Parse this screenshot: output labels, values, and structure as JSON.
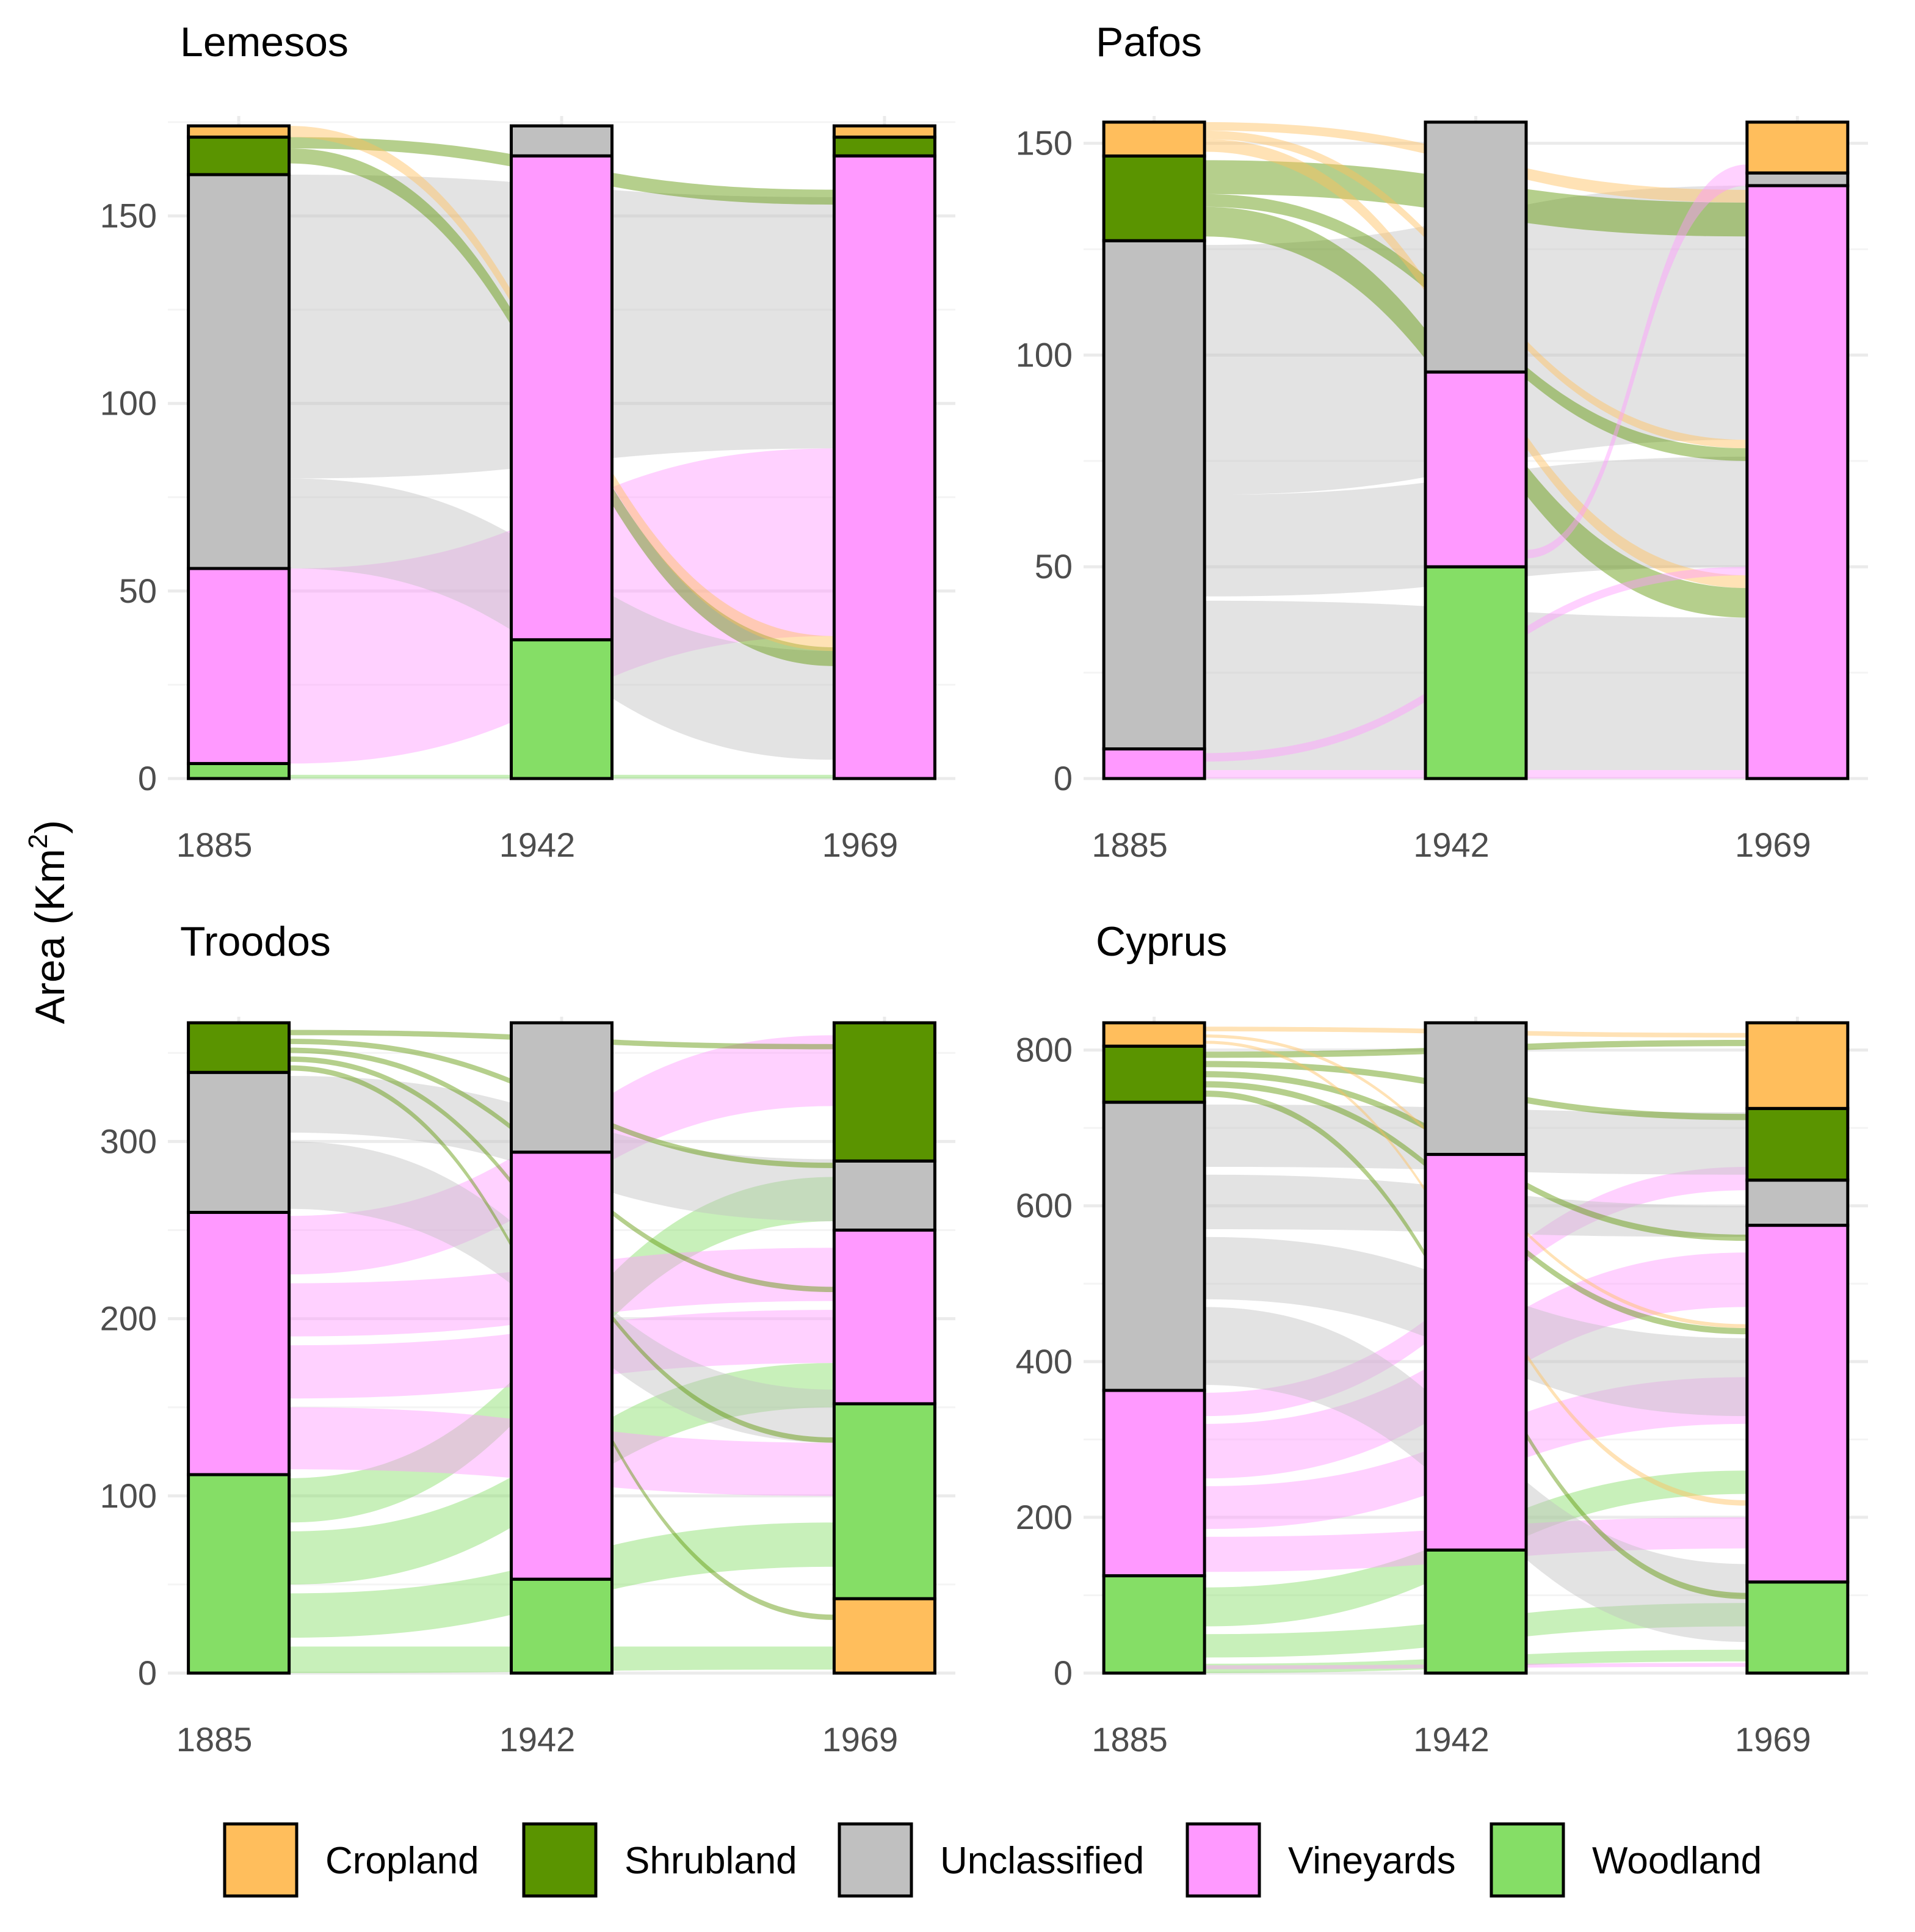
{
  "figure": {
    "ylabel_main": "Area (Km",
    "ylabel_sup": "2",
    "ylabel_close": ")"
  },
  "legend": {
    "entries": [
      {
        "name": "Cropland",
        "color": "#FFBE5C"
      },
      {
        "name": "Shrubland",
        "color": "#5A9400"
      },
      {
        "name": "Unclassified",
        "color": "#C0C0C0"
      },
      {
        "name": "Vineyards",
        "color": "#FF99FF"
      },
      {
        "name": "Woodland",
        "color": "#85DE66"
      }
    ]
  },
  "chart_data": [
    {
      "type": "alluvial",
      "title": "Lemesos",
      "years": [
        "1885",
        "1942",
        "1969"
      ],
      "ylim": [
        0,
        175
      ],
      "yticks": [
        0,
        50,
        100,
        150
      ],
      "stacks": {
        "1885": [
          {
            "category": "Woodland",
            "value": 4
          },
          {
            "category": "Vineyards",
            "value": 52
          },
          {
            "category": "Unclassified",
            "value": 105
          },
          {
            "category": "Shrubland",
            "value": 10
          },
          {
            "category": "Cropland",
            "value": 3
          }
        ],
        "1942": [
          {
            "category": "Woodland",
            "value": 37
          },
          {
            "category": "Vineyards",
            "value": 129
          },
          {
            "category": "Unclassified",
            "value": 8
          }
        ],
        "1969": [
          {
            "category": "Vineyards",
            "value": 166
          },
          {
            "category": "Shrubland",
            "value": 5
          },
          {
            "category": "Cropland",
            "value": 3
          }
        ]
      },
      "flows": [
        {
          "from": [
            1885,
            1969
          ],
          "from_y": [
            0,
            1
          ],
          "to_y": [
            0,
            1
          ],
          "category": "Woodland"
        },
        {
          "from": [
            1885,
            1969
          ],
          "from_y": [
            4,
            56
          ],
          "to_y": [
            38,
            88
          ],
          "category": "Vineyards"
        },
        {
          "from": [
            1885,
            1969
          ],
          "from_y": [
            56,
            80
          ],
          "to_y": [
            5,
            34
          ],
          "category": "Unclassified"
        },
        {
          "from": [
            1885,
            1969
          ],
          "from_y": [
            80,
            161
          ],
          "to_y": [
            88,
            155
          ],
          "category": "Unclassified"
        },
        {
          "from": [
            1885,
            1969
          ],
          "from_y": [
            164,
            168
          ],
          "to_y": [
            30,
            35
          ],
          "category": "Shrubland"
        },
        {
          "from": [
            1885,
            1969
          ],
          "from_y": [
            168,
            171
          ],
          "to_y": [
            153,
            157
          ],
          "category": "Shrubland"
        },
        {
          "from": [
            1885,
            1969
          ],
          "from_y": [
            171,
            174
          ],
          "to_y": [
            34,
            38
          ],
          "category": "Cropland"
        }
      ]
    },
    {
      "type": "alluvial",
      "title": "Pafos",
      "years": [
        "1885",
        "1942",
        "1969"
      ],
      "ylim": [
        0,
        155
      ],
      "yticks": [
        0,
        50,
        100,
        150
      ],
      "stacks": {
        "1885": [
          {
            "category": "Vineyards",
            "value": 7
          },
          {
            "category": "Unclassified",
            "value": 120
          },
          {
            "category": "Shrubland",
            "value": 20
          },
          {
            "category": "Cropland",
            "value": 8
          }
        ],
        "1942": [
          {
            "category": "Woodland",
            "value": 50
          },
          {
            "category": "Vineyards",
            "value": 46
          },
          {
            "category": "Unclassified",
            "value": 59
          }
        ],
        "1969": [
          {
            "category": "Vineyards",
            "value": 140
          },
          {
            "category": "Unclassified",
            "value": 3
          },
          {
            "category": "Cropland",
            "value": 12
          }
        ]
      },
      "flows": [
        {
          "from": [
            1885,
            1969
          ],
          "from_y": [
            0,
            2
          ],
          "to_y": [
            0,
            2
          ],
          "category": "Vineyards"
        },
        {
          "from": [
            1885,
            1969
          ],
          "from_y": [
            2,
            42
          ],
          "to_y": [
            2,
            38
          ],
          "category": "Unclassified"
        },
        {
          "from": [
            1885,
            1969
          ],
          "from_y": [
            43,
            67
          ],
          "to_y": [
            50,
            76
          ],
          "category": "Unclassified"
        },
        {
          "from": [
            1885,
            1969
          ],
          "from_y": [
            67,
            126
          ],
          "to_y": [
            80,
            140
          ],
          "category": "Unclassified"
        },
        {
          "from": [
            1885,
            1969
          ],
          "from_y": [
            128,
            135
          ],
          "to_y": [
            38,
            45
          ],
          "category": "Shrubland"
        },
        {
          "from": [
            1885,
            1969
          ],
          "from_y": [
            135,
            138
          ],
          "to_y": [
            75,
            78
          ],
          "category": "Shrubland"
        },
        {
          "from": [
            1885,
            1969
          ],
          "from_y": [
            138,
            146
          ],
          "to_y": [
            128,
            136
          ],
          "category": "Shrubland"
        },
        {
          "from": [
            1885,
            1969
          ],
          "from_y": [
            148,
            151
          ],
          "to_y": [
            45,
            48
          ],
          "category": "Cropland"
        },
        {
          "from": [
            1885,
            1969
          ],
          "from_y": [
            151,
            153
          ],
          "to_y": [
            78,
            80
          ],
          "category": "Cropland"
        },
        {
          "from": [
            1885,
            1969
          ],
          "from_y": [
            153,
            155
          ],
          "to_y": [
            136,
            139
          ],
          "category": "Cropland"
        },
        {
          "from": [
            1885,
            1969
          ],
          "from_y": [
            4,
            6
          ],
          "to_y": [
            48,
            50
          ],
          "category": "Vineyards"
        },
        {
          "from": [
            1942,
            1969
          ],
          "from_y": [
            52,
            54
          ],
          "to_y": [
            140,
            145
          ],
          "category": "Vineyards"
        }
      ]
    },
    {
      "type": "alluvial",
      "title": "Troodos",
      "years": [
        "1885",
        "1942",
        "1969"
      ],
      "ylim": [
        0,
        367
      ],
      "yticks": [
        0,
        100,
        200,
        300
      ],
      "stacks": {
        "1885": [
          {
            "category": "Woodland",
            "value": 112
          },
          {
            "category": "Vineyards",
            "value": 148
          },
          {
            "category": "Unclassified",
            "value": 79
          },
          {
            "category": "Shrubland",
            "value": 28
          }
        ],
        "1942": [
          {
            "category": "Woodland",
            "value": 53
          },
          {
            "category": "Vineyards",
            "value": 241
          },
          {
            "category": "Unclassified",
            "value": 73
          }
        ],
        "1969": [
          {
            "category": "Cropland",
            "value": 42
          },
          {
            "category": "Woodland",
            "value": 110
          },
          {
            "category": "Vineyards",
            "value": 98
          },
          {
            "category": "Unclassified",
            "value": 39
          },
          {
            "category": "Shrubland",
            "value": 78
          }
        ]
      },
      "flows": [
        {
          "from": [
            1885,
            1969
          ],
          "from_y": [
            0,
            15
          ],
          "to_y": [
            2,
            15
          ],
          "category": "Woodland"
        },
        {
          "from": [
            1885,
            1969
          ],
          "from_y": [
            20,
            45
          ],
          "to_y": [
            60,
            85
          ],
          "category": "Woodland"
        },
        {
          "from": [
            1885,
            1969
          ],
          "from_y": [
            50,
            80
          ],
          "to_y": [
            150,
            175
          ],
          "category": "Woodland"
        },
        {
          "from": [
            1885,
            1969
          ],
          "from_y": [
            85,
            110
          ],
          "to_y": [
            255,
            280
          ],
          "category": "Woodland"
        },
        {
          "from": [
            1885,
            1969
          ],
          "from_y": [
            115,
            150
          ],
          "to_y": [
            100,
            130
          ],
          "category": "Vineyards"
        },
        {
          "from": [
            1885,
            1969
          ],
          "from_y": [
            155,
            185
          ],
          "to_y": [
            175,
            205
          ],
          "category": "Vineyards"
        },
        {
          "from": [
            1885,
            1969
          ],
          "from_y": [
            190,
            220
          ],
          "to_y": [
            210,
            240
          ],
          "category": "Vineyards"
        },
        {
          "from": [
            1885,
            1969
          ],
          "from_y": [
            225,
            258
          ],
          "to_y": [
            320,
            360
          ],
          "category": "Vineyards"
        },
        {
          "from": [
            1885,
            1969
          ],
          "from_y": [
            262,
            300
          ],
          "to_y": [
            130,
            160
          ],
          "category": "Unclassified"
        },
        {
          "from": [
            1885,
            1969
          ],
          "from_y": [
            305,
            337
          ],
          "to_y": [
            255,
            290
          ],
          "category": "Unclassified"
        },
        {
          "from": [
            1885,
            1969
          ],
          "from_y": [
            340,
            343
          ],
          "to_y": [
            30,
            33
          ],
          "category": "Shrubland"
        },
        {
          "from": [
            1885,
            1969
          ],
          "from_y": [
            345,
            348
          ],
          "to_y": [
            130,
            133
          ],
          "category": "Shrubland"
        },
        {
          "from": [
            1885,
            1969
          ],
          "from_y": [
            350,
            353
          ],
          "to_y": [
            215,
            218
          ],
          "category": "Shrubland"
        },
        {
          "from": [
            1885,
            1969
          ],
          "from_y": [
            355,
            358
          ],
          "to_y": [
            285,
            288
          ],
          "category": "Shrubland"
        },
        {
          "from": [
            1885,
            1969
          ],
          "from_y": [
            360,
            363
          ],
          "to_y": [
            352,
            355
          ],
          "category": "Shrubland"
        }
      ]
    },
    {
      "type": "alluvial",
      "title": "Cyprus",
      "years": [
        "1885",
        "1942",
        "1969"
      ],
      "ylim": [
        0,
        835
      ],
      "yticks": [
        0,
        200,
        400,
        600,
        800
      ],
      "stacks": {
        "1885": [
          {
            "category": "Woodland",
            "value": 125
          },
          {
            "category": "Vineyards",
            "value": 238
          },
          {
            "category": "Unclassified",
            "value": 370
          },
          {
            "category": "Shrubland",
            "value": 72
          },
          {
            "category": "Cropland",
            "value": 30
          }
        ],
        "1942": [
          {
            "category": "Woodland",
            "value": 158
          },
          {
            "category": "Vineyards",
            "value": 508
          },
          {
            "category": "Unclassified",
            "value": 169
          }
        ],
        "1969": [
          {
            "category": "Woodland",
            "value": 117
          },
          {
            "category": "Vineyards",
            "value": 458
          },
          {
            "category": "Unclassified",
            "value": 58
          },
          {
            "category": "Shrubland",
            "value": 92
          },
          {
            "category": "Cropland",
            "value": 110
          }
        ]
      },
      "flows": [
        {
          "from": [
            1885,
            1969
          ],
          "from_y": [
            0,
            12
          ],
          "to_y": [
            15,
            30
          ],
          "category": "Woodland"
        },
        {
          "from": [
            1885,
            1969
          ],
          "from_y": [
            20,
            50
          ],
          "to_y": [
            60,
            90
          ],
          "category": "Woodland"
        },
        {
          "from": [
            1885,
            1969
          ],
          "from_y": [
            60,
            110
          ],
          "to_y": [
            230,
            260
          ],
          "category": "Woodland"
        },
        {
          "from": [
            1885,
            1969
          ],
          "from_y": [
            130,
            175
          ],
          "to_y": [
            160,
            200
          ],
          "category": "Vineyards"
        },
        {
          "from": [
            1885,
            1969
          ],
          "from_y": [
            185,
            240
          ],
          "to_y": [
            320,
            380
          ],
          "category": "Vineyards"
        },
        {
          "from": [
            1885,
            1969
          ],
          "from_y": [
            250,
            320
          ],
          "to_y": [
            470,
            540
          ],
          "category": "Vineyards"
        },
        {
          "from": [
            1885,
            1969
          ],
          "from_y": [
            330,
            360
          ],
          "to_y": [
            620,
            650
          ],
          "category": "Vineyards"
        },
        {
          "from": [
            1885,
            1969
          ],
          "from_y": [
            370,
            470
          ],
          "to_y": [
            40,
            140
          ],
          "category": "Unclassified"
        },
        {
          "from": [
            1885,
            1969
          ],
          "from_y": [
            480,
            560
          ],
          "to_y": [
            330,
            430
          ],
          "category": "Unclassified"
        },
        {
          "from": [
            1885,
            1969
          ],
          "from_y": [
            570,
            640
          ],
          "to_y": [
            560,
            600
          ],
          "category": "Unclassified"
        },
        {
          "from": [
            1885,
            1969
          ],
          "from_y": [
            650,
            730
          ],
          "to_y": [
            640,
            720
          ],
          "category": "Unclassified"
        },
        {
          "from": [
            1885,
            1969
          ],
          "from_y": [
            740,
            748
          ],
          "to_y": [
            95,
            103
          ],
          "category": "Shrubland"
        },
        {
          "from": [
            1885,
            1969
          ],
          "from_y": [
            752,
            760
          ],
          "to_y": [
            435,
            443
          ],
          "category": "Shrubland"
        },
        {
          "from": [
            1885,
            1969
          ],
          "from_y": [
            765,
            773
          ],
          "to_y": [
            555,
            563
          ],
          "category": "Shrubland"
        },
        {
          "from": [
            1885,
            1969
          ],
          "from_y": [
            778,
            786
          ],
          "to_y": [
            710,
            718
          ],
          "category": "Shrubland"
        },
        {
          "from": [
            1885,
            1969
          ],
          "from_y": [
            790,
            798
          ],
          "to_y": [
            805,
            813
          ],
          "category": "Shrubland"
        },
        {
          "from": [
            1885,
            1969
          ],
          "from_y": [
            808,
            812
          ],
          "to_y": [
            215,
            222
          ],
          "category": "Cropland"
        },
        {
          "from": [
            1885,
            1969
          ],
          "from_y": [
            816,
            820
          ],
          "to_y": [
            443,
            448
          ],
          "category": "Cropland"
        },
        {
          "from": [
            1885,
            1969
          ],
          "from_y": [
            824,
            830
          ],
          "to_y": [
            816,
            822
          ],
          "category": "Cropland"
        },
        {
          "from": [
            1885,
            1969
          ],
          "from_y": [
            5,
            10
          ],
          "to_y": [
            8,
            13
          ],
          "category": "Vineyards"
        }
      ]
    }
  ]
}
